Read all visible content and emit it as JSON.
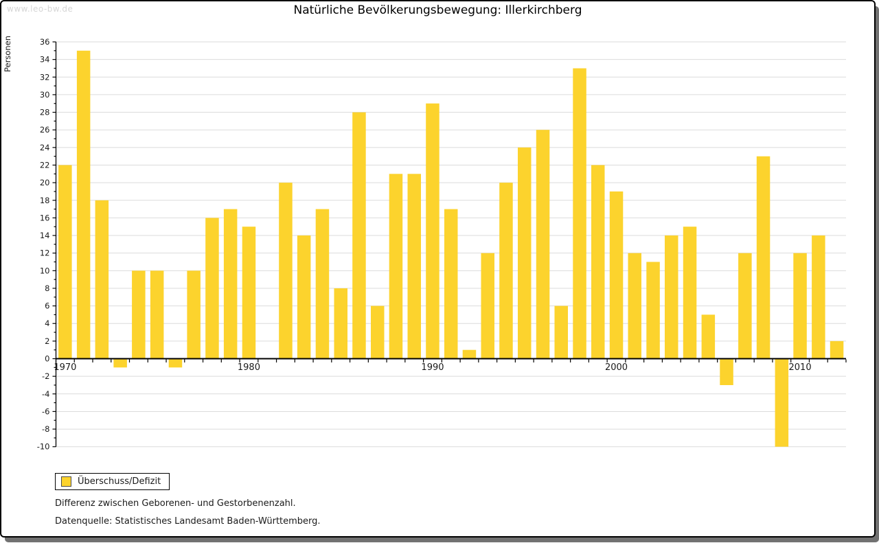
{
  "watermark": "www.leo-bw.de",
  "title": "Natürliche Bevölkerungsbewegung: Illerkirchberg",
  "legend": {
    "label": "Überschuss/Defizit"
  },
  "footnotes": {
    "line1": "Differenz zwischen Geborenen- und Gestorbenenzahl.",
    "line2": "Datenquelle: Statistisches Landesamt Baden-Württemberg."
  },
  "colors": {
    "bar": "#FCD32D",
    "grid": "#DBDBDB",
    "axis": "#000000",
    "text": "#1A1A1A",
    "watermark": "#D6D6D6",
    "card_shadow": "#717171"
  },
  "chart_data": {
    "type": "bar",
    "title": "Natürliche Bevölkerungsbewegung: Illerkirchberg",
    "xlabel": "",
    "ylabel": "Personen",
    "ylim": [
      -10,
      36
    ],
    "ytick_major_step": 2,
    "ytick_minor_step": 1,
    "grid": true,
    "legend_position": "bottom-left",
    "series_name": "Überschuss/Defizit",
    "categories": [
      1970,
      1971,
      1972,
      1973,
      1974,
      1975,
      1976,
      1977,
      1978,
      1979,
      1980,
      1981,
      1982,
      1983,
      1984,
      1985,
      1986,
      1987,
      1988,
      1989,
      1990,
      1991,
      1992,
      1993,
      1994,
      1995,
      1996,
      1997,
      1998,
      1999,
      2000,
      2001,
      2002,
      2003,
      2004,
      2005,
      2006,
      2007,
      2008,
      2009,
      2010,
      2011,
      2012
    ],
    "values": [
      22,
      35,
      18,
      -1,
      10,
      10,
      -1,
      10,
      16,
      17,
      15,
      0,
      20,
      14,
      17,
      8,
      28,
      6,
      21,
      21,
      29,
      17,
      1,
      12,
      20,
      24,
      26,
      6,
      33,
      22,
      19,
      12,
      11,
      14,
      15,
      5,
      -3,
      12,
      23,
      -10,
      12,
      14,
      2
    ],
    "xticks_labeled": [
      1970,
      1980,
      1990,
      2000,
      2010
    ]
  }
}
